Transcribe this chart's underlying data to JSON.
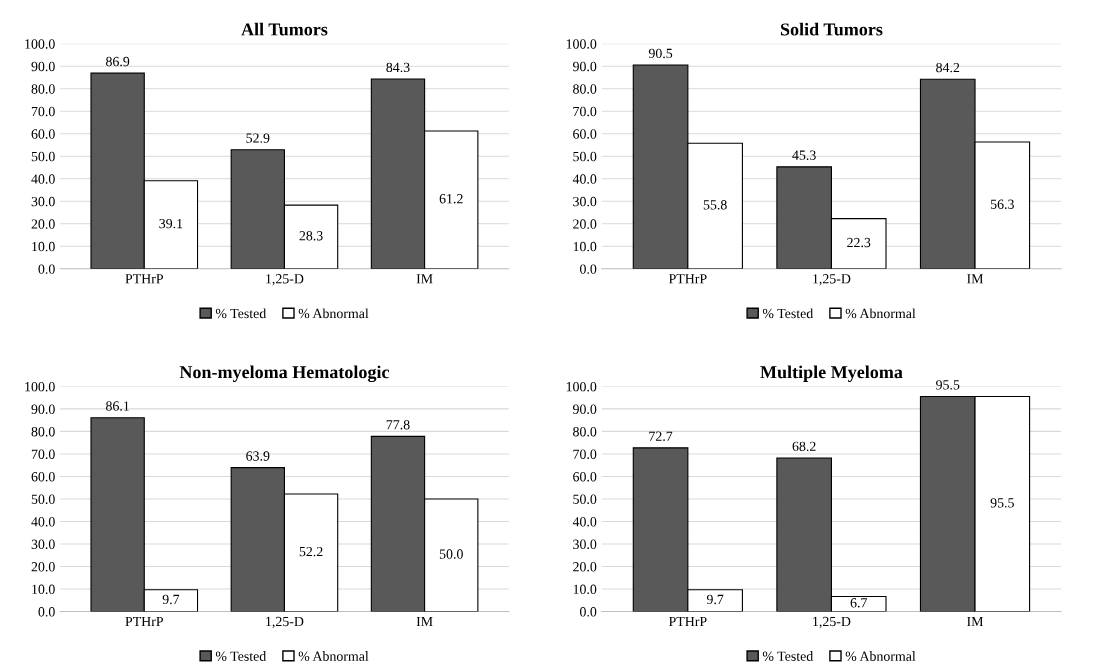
{
  "chart_data": [
    {
      "type": "bar",
      "title": "All Tumors",
      "categories": [
        "PTHrP",
        "1,25-D",
        "IM"
      ],
      "ylim": [
        0,
        100
      ],
      "yticks": [
        {
          "value": 0,
          "label": "0.0"
        },
        {
          "value": 10,
          "label": "10.0"
        },
        {
          "value": 20,
          "label": "20.0"
        },
        {
          "value": 30,
          "label": "30.0"
        },
        {
          "value": 40,
          "label": "40.0"
        },
        {
          "value": 50,
          "label": "50.0"
        },
        {
          "value": 60,
          "label": "60.0"
        },
        {
          "value": 70,
          "label": "70.0"
        },
        {
          "value": 80,
          "label": "80.0"
        },
        {
          "value": 90,
          "label": "90.0"
        },
        {
          "value": 100,
          "label": "100.0"
        }
      ],
      "grid": "y",
      "legend": "bottom",
      "series": [
        {
          "name": "% Tested",
          "color": "#595959",
          "values": [
            86.9,
            52.9,
            84.3
          ],
          "value_labels": [
            "86.9",
            "52.9",
            "84.3"
          ]
        },
        {
          "name": "% Abnormal",
          "color": "#ffffff",
          "values": [
            39.1,
            28.3,
            61.2
          ],
          "value_labels": [
            "39.1",
            "28.3",
            "61.2"
          ]
        }
      ]
    },
    {
      "type": "bar",
      "title": "Solid Tumors",
      "categories": [
        "PTHrP",
        "1,25-D",
        "IM"
      ],
      "ylim": [
        0,
        100
      ],
      "yticks": [
        {
          "value": 0,
          "label": "0.0"
        },
        {
          "value": 10,
          "label": "10.0"
        },
        {
          "value": 20,
          "label": "20.0"
        },
        {
          "value": 30,
          "label": "30.0"
        },
        {
          "value": 40,
          "label": "40.0"
        },
        {
          "value": 50,
          "label": "50.0"
        },
        {
          "value": 60,
          "label": "60.0"
        },
        {
          "value": 70,
          "label": "70.0"
        },
        {
          "value": 80,
          "label": "80.0"
        },
        {
          "value": 90,
          "label": "90.0"
        },
        {
          "value": 100,
          "label": "100.0"
        }
      ],
      "grid": "y",
      "legend": "bottom",
      "series": [
        {
          "name": "% Tested",
          "color": "#595959",
          "values": [
            90.5,
            45.3,
            84.2
          ],
          "value_labels": [
            "90.5",
            "45.3",
            "84.2"
          ]
        },
        {
          "name": "% Abnormal",
          "color": "#ffffff",
          "values": [
            55.8,
            22.3,
            56.3
          ],
          "value_labels": [
            "55.8",
            "22.3",
            "56.3"
          ]
        }
      ]
    },
    {
      "type": "bar",
      "title": "Non-myeloma Hematologic",
      "categories": [
        "PTHrP",
        "1,25-D",
        "IM"
      ],
      "ylim": [
        0,
        100
      ],
      "yticks": [
        {
          "value": 0,
          "label": "0.0"
        },
        {
          "value": 10,
          "label": "10.0"
        },
        {
          "value": 20,
          "label": "20.0"
        },
        {
          "value": 30,
          "label": "30.0"
        },
        {
          "value": 40,
          "label": "40.0"
        },
        {
          "value": 50,
          "label": "50.0"
        },
        {
          "value": 60,
          "label": "60.0"
        },
        {
          "value": 70,
          "label": "70.0"
        },
        {
          "value": 80,
          "label": "80.0"
        },
        {
          "value": 90,
          "label": "90.0"
        },
        {
          "value": 100,
          "label": "100.0"
        }
      ],
      "grid": "y",
      "legend": "bottom",
      "series": [
        {
          "name": "% Tested",
          "color": "#595959",
          "values": [
            86.1,
            63.9,
            77.8
          ],
          "value_labels": [
            "86.1",
            "63.9",
            "77.8"
          ]
        },
        {
          "name": "% Abnormal",
          "color": "#ffffff",
          "values": [
            9.7,
            52.2,
            50.0
          ],
          "value_labels": [
            "9.7",
            "52.2",
            "50.0"
          ]
        }
      ]
    },
    {
      "type": "bar",
      "title": "Multiple Myeloma",
      "categories": [
        "PTHrP",
        "1,25-D",
        "IM"
      ],
      "ylim": [
        0,
        100
      ],
      "yticks": [
        {
          "value": 0,
          "label": "0.0"
        },
        {
          "value": 10,
          "label": "10.0"
        },
        {
          "value": 20,
          "label": "20.0"
        },
        {
          "value": 30,
          "label": "30.0"
        },
        {
          "value": 40,
          "label": "40.0"
        },
        {
          "value": 50,
          "label": "50.0"
        },
        {
          "value": 60,
          "label": "60.0"
        },
        {
          "value": 70,
          "label": "70.0"
        },
        {
          "value": 80,
          "label": "80.0"
        },
        {
          "value": 90,
          "label": "90.0"
        },
        {
          "value": 100,
          "label": "100.0"
        }
      ],
      "grid": "y",
      "legend": "bottom",
      "series": [
        {
          "name": "% Tested",
          "color": "#595959",
          "values": [
            72.7,
            68.2,
            95.5
          ],
          "value_labels": [
            "72.7",
            "68.2",
            "95.5"
          ]
        },
        {
          "name": "% Abnormal",
          "color": "#ffffff",
          "values": [
            9.7,
            6.7,
            95.5
          ],
          "value_labels": [
            "9.7",
            "6.7",
            "95.5"
          ]
        }
      ]
    }
  ]
}
